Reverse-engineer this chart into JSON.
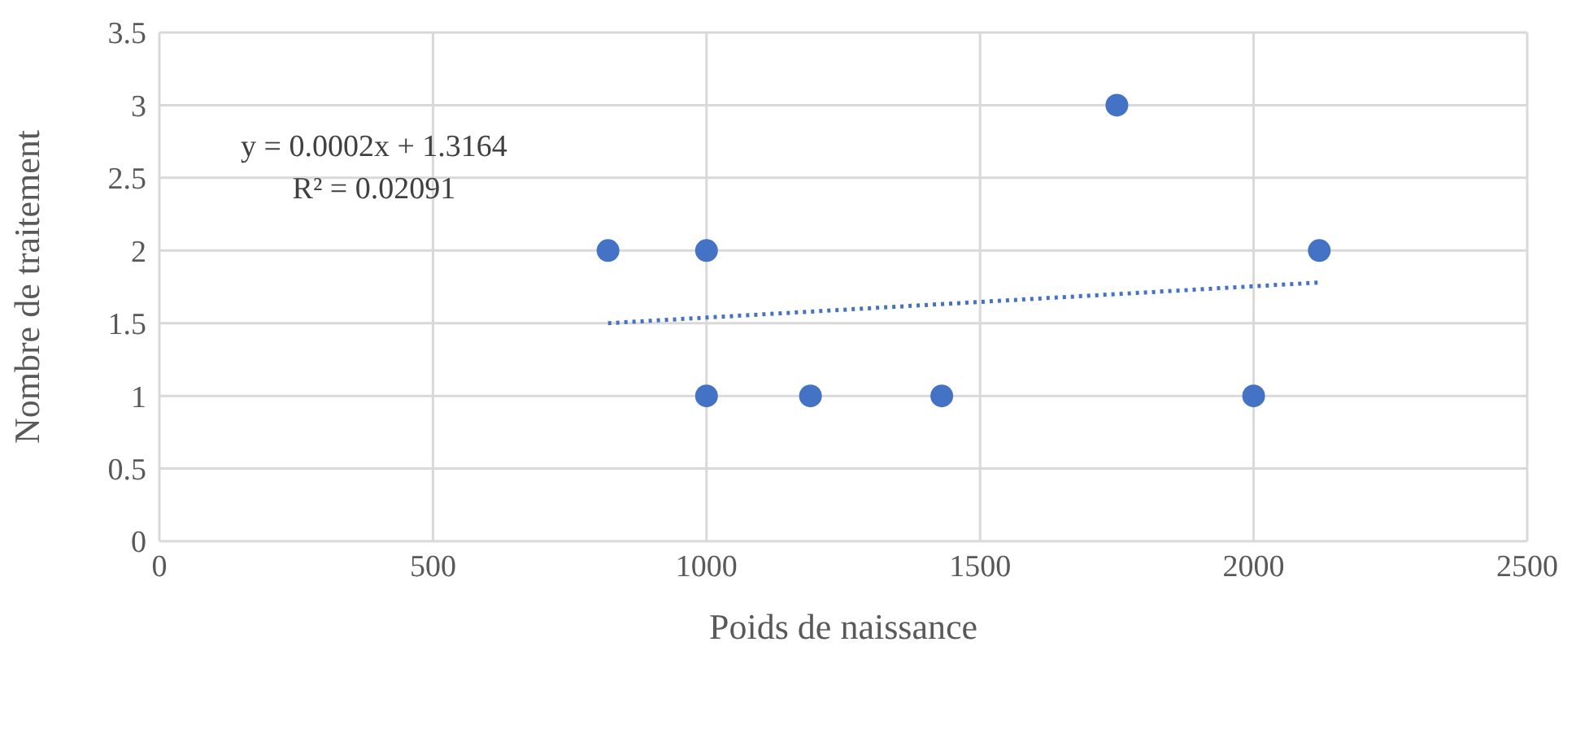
{
  "chart_data": {
    "type": "scatter",
    "xlabel": "Poids de naissance",
    "ylabel": "Nombre de traitement",
    "xlim": [
      0,
      2500
    ],
    "xticks": [
      0,
      500,
      1000,
      1500,
      2000,
      2500
    ],
    "ylim": [
      0,
      3.5
    ],
    "yticks": [
      0,
      0.5,
      1,
      1.5,
      2,
      2.5,
      3,
      3.5
    ],
    "grid": true,
    "annotations": [
      "y = 0.0002x + 1.3164",
      "R² = 0.02091"
    ],
    "series": [
      {
        "color": "#4472c4",
        "marker": "circle",
        "x": [
          820,
          1000,
          1000,
          1190,
          1430,
          1750,
          2000,
          2120
        ],
        "values": [
          2,
          2,
          1,
          1,
          1,
          3,
          1,
          2
        ]
      },
      {
        "type": "line",
        "color": "#4472c4",
        "marker": "none",
        "line_style": "dotted",
        "x": [
          820,
          2120
        ],
        "values": [
          1.5,
          1.78
        ]
      }
    ]
  }
}
